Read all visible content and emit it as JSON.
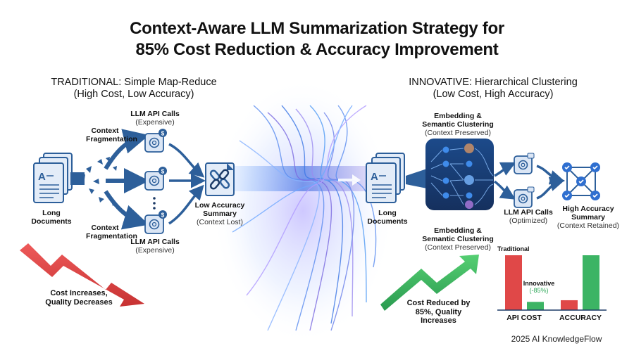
{
  "title": {
    "line1": "Context-Aware LLM Summarization Strategy for",
    "line2": "85% Cost Reduction & Accuracy Improvement"
  },
  "traditional": {
    "heading": "TRADITIONAL: Simple Map-Reduce",
    "subheading": "(High Cost, Low Accuracy)",
    "documents_label": "Long Documents",
    "fragmentation_top": "Context Fragmentation",
    "fragmentation_bottom": "Context Fragmentation",
    "api_top_title": "LLM API Calls",
    "api_top_note": "(Expensive)",
    "api_bottom_title": "LLM API Calls",
    "api_bottom_note": "(Expensive)",
    "summary_title": "Low Accuracy Summary",
    "summary_note": "(Context Lost)",
    "trend_text": "Cost Increases, Quality Decreases",
    "trend_color": "#d93a3a",
    "icons": [
      "document-stack-icon",
      "llm-api-icon",
      "dollar-badge-icon",
      "broken-link-icon"
    ]
  },
  "innovative": {
    "heading": "INNOVATIVE: Hierarchical Clustering",
    "subheading": "(Low Cost, High Accuracy)",
    "documents_label": "Long Documents",
    "clustering_top_title": "Embedding & Semantic Clustering",
    "clustering_top_note": "(Context Preserved)",
    "clustering_bottom_title": "Embedding & Semantic Clustering",
    "clustering_bottom_note": "(Context Preserved)",
    "api_title": "LLM API Calls",
    "api_note": "(Optimized)",
    "summary_title": "High Accuracy Summary",
    "summary_note": "(Context Retained)",
    "trend_text": "Cost Reduced by 85%, Quality Increases",
    "trend_color": "#2fa859",
    "icons": [
      "document-stack-icon",
      "cluster-network-icon",
      "llm-api-icon",
      "checkmark-network-icon"
    ]
  },
  "comparison": {
    "legend_traditional": "Traditional",
    "legend_innovative": "Innovative",
    "reduction_label": "(-85%)",
    "categories": [
      "API COST",
      "ACCURACY"
    ],
    "bars": [
      {
        "category": "API COST",
        "series": "Traditional",
        "level": 100,
        "color": "#e04848"
      },
      {
        "category": "API COST",
        "series": "Innovative",
        "level": 15,
        "color": "#3cb464"
      },
      {
        "category": "ACCURACY",
        "series": "Traditional",
        "level": 18,
        "color": "#e04848"
      },
      {
        "category": "ACCURACY",
        "series": "Innovative",
        "level": 100,
        "color": "#3cb464"
      }
    ]
  },
  "colors": {
    "primary_blue": "#2d5f9a",
    "dark_navy": "#1c3a66",
    "glow_purple": "#8a6de0"
  },
  "footer": "2025 AI KnowledgeFlow"
}
